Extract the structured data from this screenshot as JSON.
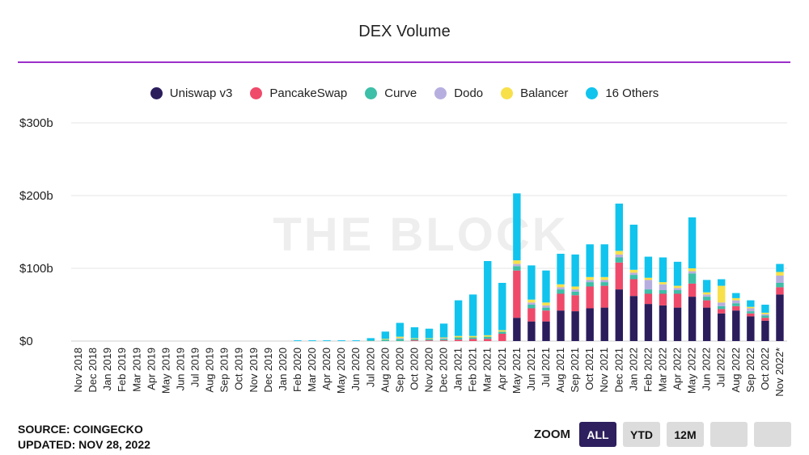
{
  "colors": {
    "accent_rule": "#9b2fc9",
    "grid": "#e6e6e6",
    "button_active": "#2e1f5e",
    "button_inactive": "#dcdcdc"
  },
  "footer": {
    "source": "SOURCE: COINGECKO",
    "updated": "UPDATED: NOV 28, 2022"
  },
  "zoom": {
    "label": "ZOOM",
    "buttons": [
      {
        "label": "ALL",
        "active": true
      },
      {
        "label": "YTD",
        "active": false
      },
      {
        "label": "12M",
        "active": false
      },
      {
        "label": "",
        "active": false
      },
      {
        "label": "",
        "active": false
      }
    ]
  },
  "chart_data": {
    "type": "bar",
    "stacked": true,
    "title": "DEX Volume",
    "watermark": "THE BLOCK",
    "xlabel": "",
    "ylabel": "",
    "ylim": [
      0,
      300
    ],
    "yticks": [
      0,
      100,
      200,
      300
    ],
    "ytick_labels": [
      "$0",
      "$100b",
      "$200b",
      "$300b"
    ],
    "grid": true,
    "legend_position": "top-center",
    "categories": [
      "Nov 2018",
      "Dec 2018",
      "Jan 2019",
      "Feb 2019",
      "Mar 2019",
      "Apr 2019",
      "May 2019",
      "Jun 2019",
      "Jul 2019",
      "Aug 2019",
      "Sep 2019",
      "Oct 2019",
      "Nov 2019",
      "Dec 2019",
      "Jan 2020",
      "Feb 2020",
      "Mar 2020",
      "Apr 2020",
      "May 2020",
      "Jun 2020",
      "Jul 2020",
      "Aug 2020",
      "Sep 2020",
      "Oct 2020",
      "Nov 2020",
      "Dec 2020",
      "Jan 2021",
      "Feb 2021",
      "Mar 2021",
      "Apr 2021",
      "May 2021",
      "Jun 2021",
      "Jul 2021",
      "Aug 2021",
      "Sep 2021",
      "Oct 2021",
      "Nov 2021",
      "Dec 2021",
      "Jan 2022",
      "Feb 2022",
      "Mar 2022",
      "Apr 2022",
      "May 2022",
      "Jun 2022",
      "Jul 2022",
      "Aug 2022",
      "Sep 2022",
      "Oct 2022",
      "Nov 2022*"
    ],
    "series": [
      {
        "name": "Uniswap v3",
        "color": "#2b1d5c",
        "values": [
          0,
          0,
          0,
          0,
          0,
          0,
          0,
          0,
          0,
          0,
          0,
          0,
          0,
          0,
          0,
          0,
          0,
          0,
          0,
          0,
          0,
          0,
          0,
          0,
          0,
          0,
          0,
          0,
          0,
          0,
          32,
          27,
          27,
          42,
          41,
          45,
          46,
          71,
          62,
          51,
          49,
          46,
          61,
          46,
          38,
          42,
          34,
          28,
          64
        ]
      },
      {
        "name": "PancakeSwap",
        "color": "#ef4a6a",
        "values": [
          0,
          0,
          0,
          0,
          0,
          0,
          0,
          0,
          0,
          0,
          0,
          0,
          0,
          0,
          0,
          0,
          0,
          0,
          0,
          0,
          0,
          0,
          0,
          1,
          1,
          1,
          2,
          3,
          3,
          10,
          65,
          18,
          15,
          23,
          22,
          30,
          30,
          37,
          23,
          14,
          16,
          19,
          18,
          10,
          6,
          6,
          4,
          4,
          10
        ]
      },
      {
        "name": "Curve",
        "color": "#3dbfa8",
        "values": [
          0,
          0,
          0,
          0,
          0,
          0,
          0,
          0,
          0,
          0,
          0,
          0,
          0,
          0,
          0,
          0,
          0,
          0,
          0,
          0,
          1,
          2,
          3,
          2,
          2,
          2,
          3,
          2,
          3,
          3,
          6,
          5,
          4,
          6,
          5,
          6,
          5,
          7,
          6,
          6,
          5,
          5,
          14,
          5,
          4,
          4,
          3,
          3,
          6
        ]
      },
      {
        "name": "Dodo",
        "color": "#b7aee0",
        "values": [
          0,
          0,
          0,
          0,
          0,
          0,
          0,
          0,
          0,
          0,
          0,
          0,
          0,
          0,
          0,
          0,
          0,
          0,
          0,
          0,
          0,
          0,
          1,
          0,
          0,
          1,
          0,
          0,
          0,
          0,
          3,
          3,
          3,
          3,
          3,
          3,
          3,
          4,
          3,
          13,
          8,
          3,
          3,
          3,
          5,
          4,
          4,
          2,
          10
        ]
      },
      {
        "name": "Balancer",
        "color": "#f7e04a",
        "values": [
          0,
          0,
          0,
          0,
          0,
          0,
          0,
          0,
          0,
          0,
          0,
          0,
          0,
          0,
          0,
          0,
          0,
          0,
          0,
          0,
          0,
          1,
          2,
          1,
          1,
          1,
          2,
          2,
          2,
          2,
          5,
          4,
          4,
          4,
          4,
          4,
          4,
          5,
          4,
          3,
          3,
          3,
          4,
          3,
          23,
          3,
          2,
          2,
          5
        ]
      },
      {
        "name": "16 Others",
        "color": "#10c4ee",
        "values": [
          0,
          0,
          0,
          0,
          0,
          0,
          0,
          0,
          0,
          0,
          0,
          0,
          0,
          0,
          0,
          1,
          1,
          1,
          1,
          1,
          3,
          10,
          19,
          15,
          13,
          19,
          49,
          57,
          102,
          65,
          92,
          47,
          44,
          42,
          44,
          45,
          45,
          65,
          62,
          29,
          34,
          33,
          70,
          17,
          9,
          7,
          9,
          11,
          11
        ]
      }
    ]
  }
}
